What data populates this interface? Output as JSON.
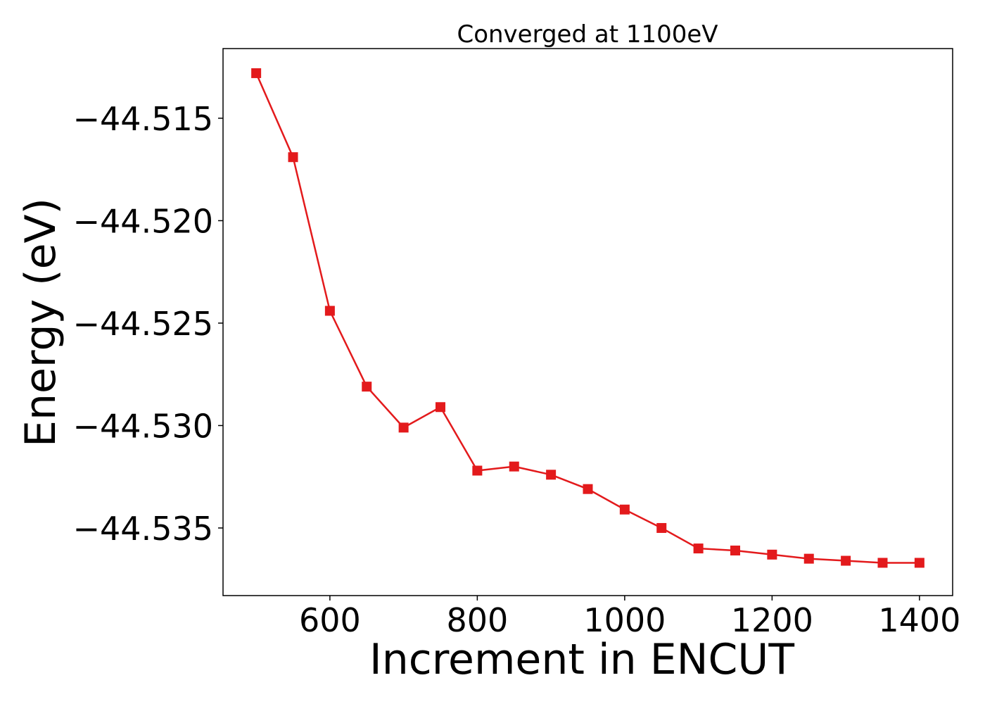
{
  "chart_data": {
    "type": "line",
    "title": "Converged at 1100eV",
    "xlabel": "Increment in ENCUT",
    "ylabel": "Energy (eV)",
    "xlim": [
      455,
      1445
    ],
    "ylim": [
      -44.5383,
      -44.5116
    ],
    "xticks": [
      600,
      800,
      1000,
      1200,
      1400
    ],
    "xtick_labels": [
      "600",
      "800",
      "1000",
      "1200",
      "1400"
    ],
    "yticks": [
      -44.515,
      -44.52,
      -44.525,
      -44.53,
      -44.535
    ],
    "ytick_labels": [
      "−44.515",
      "−44.520",
      "−44.525",
      "−44.530",
      "−44.535"
    ],
    "grid": false,
    "series": [
      {
        "color": "#e31a1c",
        "marker": "square",
        "x": [
          500,
          550,
          600,
          650,
          700,
          750,
          800,
          850,
          900,
          950,
          1000,
          1050,
          1100,
          1150,
          1200,
          1250,
          1300,
          1350,
          1400
        ],
        "y": [
          -44.5128,
          -44.5169,
          -44.5244,
          -44.5281,
          -44.5301,
          -44.5291,
          -44.5322,
          -44.532,
          -44.5324,
          -44.5331,
          -44.5341,
          -44.535,
          -44.536,
          -44.5361,
          -44.5363,
          -44.5365,
          -44.5366,
          -44.5367,
          -44.5367
        ]
      }
    ]
  }
}
